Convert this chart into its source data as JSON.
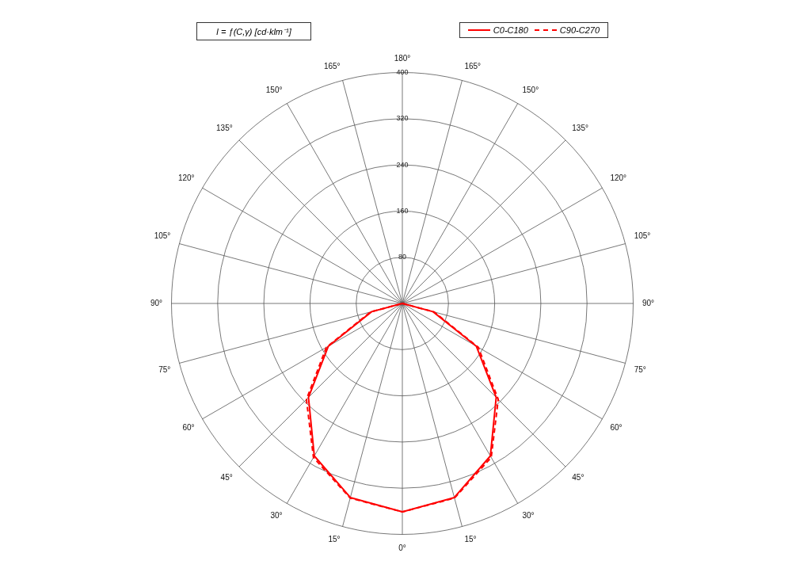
{
  "chart_data": {
    "type": "radar",
    "title": "I = ƒ(C,γ) [cd·klm⁻¹]",
    "categories": [
      "180°",
      "165°",
      "150°",
      "135°",
      "120°",
      "105°",
      "90°",
      "75°",
      "60°",
      "45°",
      "30°",
      "15°",
      "0°",
      "15°",
      "30°",
      "45°",
      "60°",
      "75°",
      "90°",
      "105°",
      "120°",
      "135°",
      "150°",
      "165°"
    ],
    "series": [
      {
        "name": "C0-C180",
        "color": "#ff0000",
        "line_style": "solid",
        "values": [
          0,
          0,
          0,
          0,
          0,
          0,
          0,
          55,
          148,
          230,
          305,
          348,
          361,
          348,
          305,
          230,
          148,
          55,
          0,
          0,
          0,
          0,
          0,
          0
        ]
      },
      {
        "name": "C90-C270",
        "color": "#ff0000",
        "line_style": "dashed",
        "values": [
          0,
          0,
          0,
          0,
          0,
          0,
          0,
          57,
          152,
          235,
          308,
          349,
          361,
          349,
          308,
          235,
          152,
          57,
          0,
          0,
          0,
          0,
          0,
          0
        ]
      }
    ],
    "ylim": [
      0,
      400
    ],
    "yticks": [
      80,
      160,
      240,
      320,
      400
    ],
    "grid": true,
    "legend": "top right",
    "marker": "none"
  }
}
